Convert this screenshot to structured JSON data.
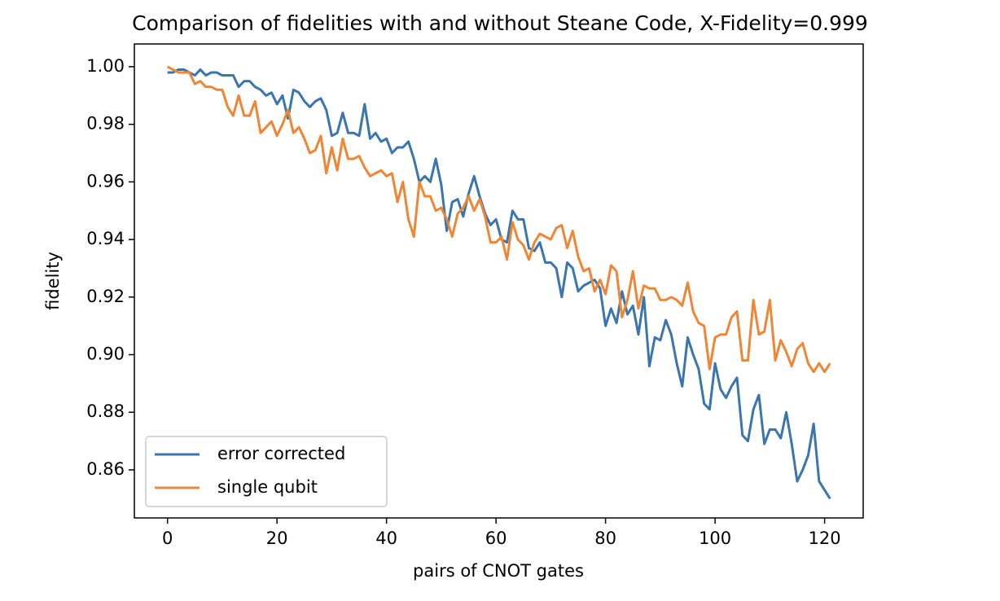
{
  "chart_data": {
    "type": "line",
    "title": "Comparison of fidelities with and without Steane Code, X-Fidelity=0.999",
    "xlabel": "pairs of CNOT gates",
    "ylabel": "fidelity",
    "x": [
      0,
      1,
      2,
      3,
      4,
      5,
      6,
      7,
      8,
      9,
      10,
      11,
      12,
      13,
      14,
      15,
      16,
      17,
      18,
      19,
      20,
      21,
      22,
      23,
      24,
      25,
      26,
      27,
      28,
      29,
      30,
      31,
      32,
      33,
      34,
      35,
      36,
      37,
      38,
      39,
      40,
      41,
      42,
      43,
      44,
      45,
      46,
      47,
      48,
      49,
      50,
      51,
      52,
      53,
      54,
      55,
      56,
      57,
      58,
      59,
      60,
      61,
      62,
      63,
      64,
      65,
      66,
      67,
      68,
      69,
      70,
      71,
      72,
      73,
      74,
      75,
      76,
      77,
      78,
      79,
      80,
      81,
      82,
      83,
      84,
      85,
      86,
      87,
      88,
      89,
      90,
      91,
      92,
      93,
      94,
      95,
      96,
      97,
      98,
      99,
      100,
      101,
      102,
      103,
      104,
      105,
      106,
      107,
      108,
      109,
      110,
      111,
      112,
      113,
      114,
      115,
      116,
      117,
      118,
      119,
      120,
      121
    ],
    "series": [
      {
        "name": "error corrected",
        "color": "#3a75af",
        "values": [
          0.998,
          0.998,
          0.999,
          0.999,
          0.998,
          0.997,
          0.999,
          0.997,
          0.998,
          0.998,
          0.997,
          0.997,
          0.997,
          0.993,
          0.995,
          0.995,
          0.993,
          0.992,
          0.99,
          0.991,
          0.987,
          0.99,
          0.982,
          0.992,
          0.991,
          0.988,
          0.986,
          0.988,
          0.989,
          0.985,
          0.976,
          0.977,
          0.984,
          0.977,
          0.977,
          0.976,
          0.987,
          0.975,
          0.977,
          0.974,
          0.975,
          0.97,
          0.972,
          0.972,
          0.974,
          0.968,
          0.96,
          0.962,
          0.96,
          0.968,
          0.959,
          0.943,
          0.953,
          0.954,
          0.948,
          0.956,
          0.962,
          0.955,
          0.949,
          0.945,
          0.947,
          0.94,
          0.939,
          0.95,
          0.947,
          0.947,
          0.937,
          0.936,
          0.939,
          0.932,
          0.932,
          0.93,
          0.92,
          0.932,
          0.93,
          0.922,
          0.924,
          0.925,
          0.926,
          0.923,
          0.91,
          0.916,
          0.911,
          0.922,
          0.914,
          0.917,
          0.907,
          0.92,
          0.896,
          0.906,
          0.905,
          0.912,
          0.907,
          0.897,
          0.889,
          0.906,
          0.9,
          0.895,
          0.883,
          0.881,
          0.897,
          0.888,
          0.885,
          0.889,
          0.892,
          0.872,
          0.87,
          0.881,
          0.886,
          0.869,
          0.874,
          0.874,
          0.871,
          0.88,
          0.869,
          0.856,
          0.86,
          0.865,
          0.876,
          0.856,
          0.853,
          0.85
        ]
      },
      {
        "name": "single qubit",
        "color": "#ef8636",
        "values": [
          1.0,
          0.999,
          0.998,
          0.998,
          0.998,
          0.994,
          0.995,
          0.993,
          0.993,
          0.992,
          0.992,
          0.986,
          0.983,
          0.99,
          0.983,
          0.983,
          0.988,
          0.977,
          0.979,
          0.981,
          0.976,
          0.98,
          0.985,
          0.977,
          0.979,
          0.975,
          0.97,
          0.971,
          0.976,
          0.963,
          0.972,
          0.964,
          0.975,
          0.968,
          0.968,
          0.969,
          0.965,
          0.962,
          0.963,
          0.964,
          0.962,
          0.963,
          0.953,
          0.96,
          0.947,
          0.941,
          0.96,
          0.955,
          0.955,
          0.95,
          0.951,
          0.947,
          0.941,
          0.949,
          0.951,
          0.955,
          0.95,
          0.954,
          0.948,
          0.939,
          0.939,
          0.941,
          0.933,
          0.946,
          0.94,
          0.938,
          0.933,
          0.939,
          0.942,
          0.941,
          0.94,
          0.944,
          0.945,
          0.937,
          0.943,
          0.934,
          0.929,
          0.93,
          0.922,
          0.926,
          0.921,
          0.931,
          0.929,
          0.913,
          0.919,
          0.929,
          0.916,
          0.924,
          0.923,
          0.923,
          0.919,
          0.919,
          0.92,
          0.919,
          0.917,
          0.925,
          0.915,
          0.911,
          0.91,
          0.895,
          0.906,
          0.907,
          0.907,
          0.913,
          0.915,
          0.898,
          0.898,
          0.919,
          0.907,
          0.908,
          0.919,
          0.898,
          0.905,
          0.901,
          0.896,
          0.902,
          0.904,
          0.897,
          0.894,
          0.897,
          0.894,
          0.897
        ]
      }
    ],
    "xlim": [
      -6.05,
      127.05
    ],
    "xticks": [
      0,
      20,
      40,
      60,
      80,
      100,
      120
    ],
    "ylim": [
      0.8433,
      1.0079
    ],
    "yticks": [
      0.86,
      0.88,
      {
        "value": 0.9,
        "label": "0.90"
      },
      0.92,
      0.94,
      0.96,
      0.98,
      {
        "value": 1,
        "label": "1.00"
      }
    ],
    "legend": "lower left",
    "grid": false
  }
}
